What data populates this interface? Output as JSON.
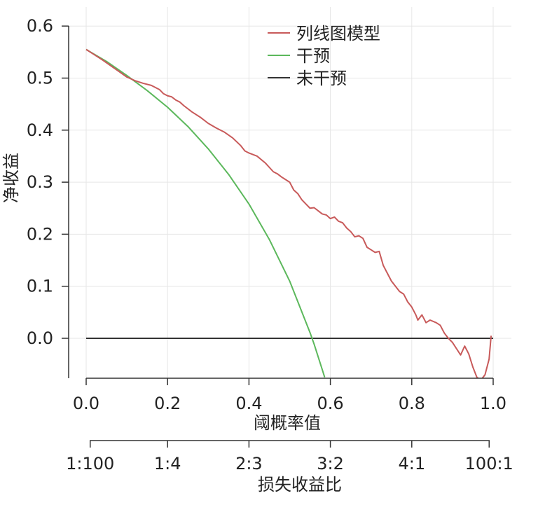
{
  "chart_data": {
    "type": "line",
    "xlabel": "阈概率值",
    "ylabel": "净收益",
    "xlim": [
      0.0,
      1.0
    ],
    "ylim": [
      -0.08,
      0.6
    ],
    "grid": true,
    "legend_position": "top-right",
    "x_ticks": [
      "0.0",
      "0.2",
      "0.4",
      "0.6",
      "0.8",
      "1.0"
    ],
    "y_ticks": [
      "0.0",
      "0.1",
      "0.2",
      "0.3",
      "0.4",
      "0.5",
      "0.6"
    ],
    "secondary_axis": {
      "label": "损失收益比",
      "ticks": [
        {
          "label": "1:100",
          "x": 0.0099
        },
        {
          "label": "1:4",
          "x": 0.2
        },
        {
          "label": "2:3",
          "x": 0.4
        },
        {
          "label": "3:2",
          "x": 0.6
        },
        {
          "label": "4:1",
          "x": 0.8
        },
        {
          "label": "100:1",
          "x": 0.9901
        }
      ]
    },
    "series": [
      {
        "name": "列线图模型",
        "color": "#c85a5a",
        "points": [
          [
            0.0,
            0.555
          ],
          [
            0.02,
            0.545
          ],
          [
            0.04,
            0.535
          ],
          [
            0.06,
            0.524
          ],
          [
            0.08,
            0.513
          ],
          [
            0.1,
            0.502
          ],
          [
            0.12,
            0.495
          ],
          [
            0.14,
            0.49
          ],
          [
            0.16,
            0.486
          ],
          [
            0.18,
            0.478
          ],
          [
            0.19,
            0.47
          ],
          [
            0.2,
            0.466
          ],
          [
            0.21,
            0.464
          ],
          [
            0.22,
            0.458
          ],
          [
            0.23,
            0.454
          ],
          [
            0.24,
            0.447
          ],
          [
            0.26,
            0.435
          ],
          [
            0.28,
            0.425
          ],
          [
            0.3,
            0.413
          ],
          [
            0.32,
            0.404
          ],
          [
            0.34,
            0.396
          ],
          [
            0.36,
            0.385
          ],
          [
            0.38,
            0.37
          ],
          [
            0.39,
            0.36
          ],
          [
            0.4,
            0.356
          ],
          [
            0.42,
            0.35
          ],
          [
            0.44,
            0.337
          ],
          [
            0.46,
            0.32
          ],
          [
            0.47,
            0.316
          ],
          [
            0.48,
            0.31
          ],
          [
            0.5,
            0.3
          ],
          [
            0.51,
            0.285
          ],
          [
            0.52,
            0.278
          ],
          [
            0.53,
            0.266
          ],
          [
            0.54,
            0.258
          ],
          [
            0.55,
            0.25
          ],
          [
            0.56,
            0.251
          ],
          [
            0.57,
            0.245
          ],
          [
            0.58,
            0.239
          ],
          [
            0.59,
            0.237
          ],
          [
            0.6,
            0.23
          ],
          [
            0.61,
            0.233
          ],
          [
            0.62,
            0.225
          ],
          [
            0.63,
            0.222
          ],
          [
            0.64,
            0.212
          ],
          [
            0.65,
            0.205
          ],
          [
            0.66,
            0.195
          ],
          [
            0.67,
            0.197
          ],
          [
            0.68,
            0.192
          ],
          [
            0.69,
            0.175
          ],
          [
            0.7,
            0.17
          ],
          [
            0.71,
            0.165
          ],
          [
            0.72,
            0.167
          ],
          [
            0.73,
            0.14
          ],
          [
            0.74,
            0.125
          ],
          [
            0.75,
            0.11
          ],
          [
            0.76,
            0.1
          ],
          [
            0.77,
            0.09
          ],
          [
            0.78,
            0.085
          ],
          [
            0.79,
            0.07
          ],
          [
            0.8,
            0.06
          ],
          [
            0.81,
            0.045
          ],
          [
            0.815,
            0.035
          ],
          [
            0.825,
            0.045
          ],
          [
            0.835,
            0.03
          ],
          [
            0.845,
            0.035
          ],
          [
            0.86,
            0.03
          ],
          [
            0.87,
            0.025
          ],
          [
            0.88,
            0.01
          ],
          [
            0.89,
            0.0
          ],
          [
            0.9,
            -0.008
          ],
          [
            0.91,
            -0.02
          ],
          [
            0.92,
            -0.032
          ],
          [
            0.93,
            -0.015
          ],
          [
            0.94,
            -0.03
          ],
          [
            0.95,
            -0.055
          ],
          [
            0.96,
            -0.075
          ],
          [
            0.97,
            -0.08
          ],
          [
            0.98,
            -0.07
          ],
          [
            0.99,
            -0.04
          ],
          [
            0.995,
            0.005
          ]
        ]
      },
      {
        "name": "干预",
        "color": "#5cb85c",
        "points": [
          [
            0.0,
            0.555
          ],
          [
            0.05,
            0.532
          ],
          [
            0.1,
            0.505
          ],
          [
            0.15,
            0.476
          ],
          [
            0.2,
            0.444
          ],
          [
            0.25,
            0.407
          ],
          [
            0.3,
            0.364
          ],
          [
            0.35,
            0.315
          ],
          [
            0.4,
            0.258
          ],
          [
            0.45,
            0.19
          ],
          [
            0.5,
            0.11
          ],
          [
            0.55,
            0.011
          ],
          [
            0.56,
            -0.011
          ],
          [
            0.58,
            -0.06
          ],
          [
            0.586,
            -0.075
          ]
        ]
      },
      {
        "name": "未干预",
        "color": "#333333",
        "points": [
          [
            0.0,
            0.0
          ],
          [
            1.0,
            0.0
          ]
        ]
      }
    ]
  }
}
